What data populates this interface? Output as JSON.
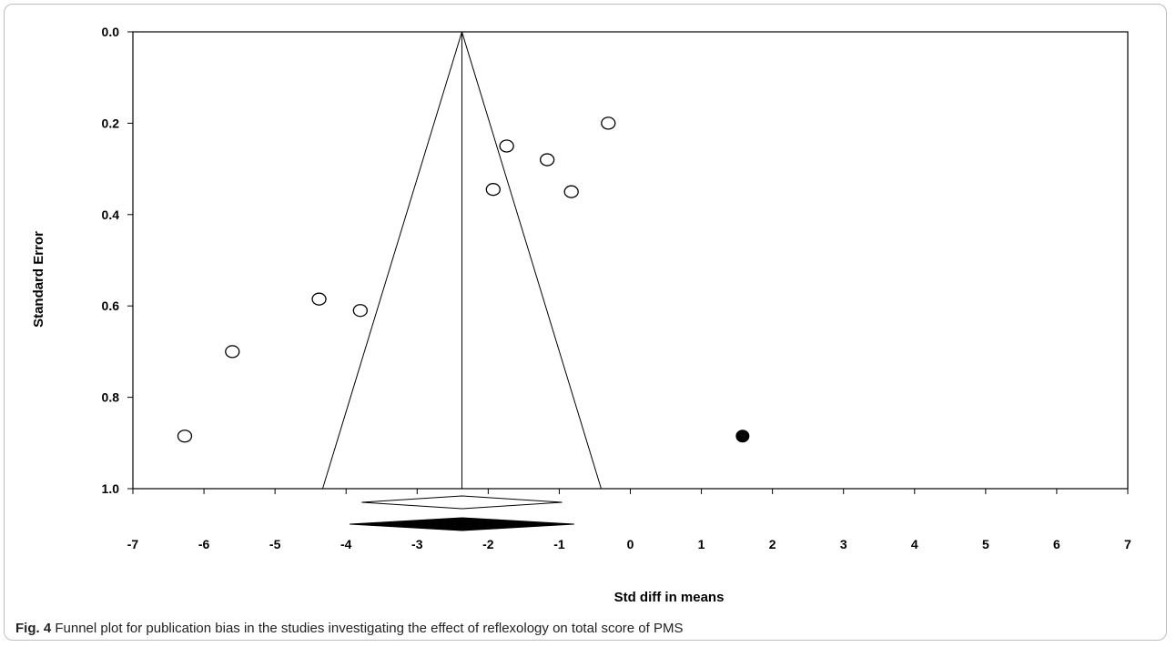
{
  "chart_data": {
    "type": "scatter",
    "xlabel": "Std diff in means",
    "ylabel": "Standard Error",
    "xlim": [
      -7,
      7
    ],
    "ylim": [
      0.0,
      1.0
    ],
    "y_inverted": true,
    "x_ticks": [
      "-7",
      "-6",
      "-5",
      "-4",
      "-3",
      "-2",
      "-1",
      "0",
      "1",
      "2",
      "3",
      "4",
      "5",
      "6",
      "7"
    ],
    "y_ticks": [
      "0.0",
      "0.2",
      "0.4",
      "0.6",
      "0.8",
      "1.0"
    ],
    "pooled_estimate": -2.37,
    "funnel_lower_x_at_max_se": -4.33,
    "funnel_upper_x_at_max_se": -0.41,
    "observed_studies": [
      {
        "x": -0.31,
        "y": 0.2
      },
      {
        "x": -1.74,
        "y": 0.25
      },
      {
        "x": -1.17,
        "y": 0.28
      },
      {
        "x": -1.93,
        "y": 0.345
      },
      {
        "x": -0.83,
        "y": 0.35
      },
      {
        "x": -4.38,
        "y": 0.585
      },
      {
        "x": -3.8,
        "y": 0.61
      },
      {
        "x": -5.6,
        "y": 0.7
      },
      {
        "x": -6.27,
        "y": 0.885
      }
    ],
    "imputed_studies": [
      {
        "x": 1.58,
        "y": 0.885
      }
    ],
    "summary_observed": {
      "center": -2.37,
      "low": -3.78,
      "high": -0.96,
      "fill": "#ffffff"
    },
    "summary_adjusted": {
      "center": -2.37,
      "low": -3.95,
      "high": -0.79,
      "fill": "#000000"
    }
  },
  "caption": {
    "label": "Fig. 4",
    "text": "Funnel plot for publication bias in the studies investigating the effect of reflexology on total score of PMS"
  }
}
